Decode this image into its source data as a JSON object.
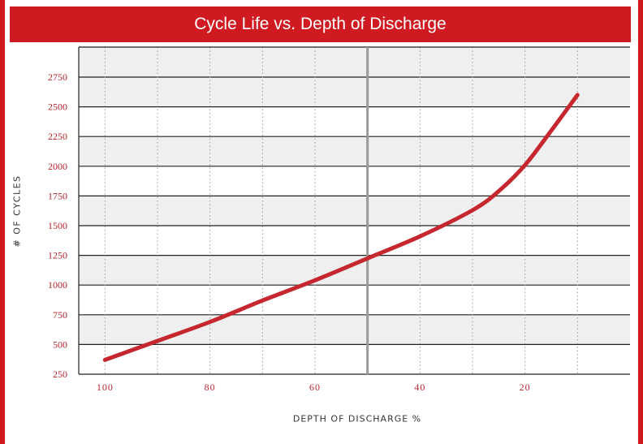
{
  "title": "Cycle Life vs. Depth of Discharge",
  "chart_data": {
    "type": "line",
    "title": "Cycle Life vs. Depth of Discharge",
    "xlabel": "DEPTH OF DISCHARGE %",
    "ylabel": "# OF CYCLES",
    "x_reversed": true,
    "xlim": [
      105,
      0
    ],
    "ylim": [
      250,
      2750
    ],
    "x_ticks": [
      "100",
      "80",
      "60",
      "40",
      "20"
    ],
    "y_ticks": [
      "250",
      "500",
      "750",
      "1000",
      "1250",
      "1500",
      "1750",
      "2000",
      "2250",
      "2500",
      "2750"
    ],
    "grid": true,
    "series": [
      {
        "x": [
          100,
          90,
          80,
          70,
          60,
          50,
          40,
          30,
          25,
          20,
          15,
          10
        ],
        "y": [
          370,
          530,
          690,
          870,
          1040,
          1225,
          1410,
          1630,
          1790,
          2010,
          2300,
          2600
        ]
      }
    ],
    "vertical_marker_x": 50
  },
  "colors": {
    "accent": "#d01a21",
    "line": "#c6272e",
    "band": "#efefef",
    "gridline": "#222222",
    "marker": "#9a9a9a",
    "tick": "#b8262d"
  }
}
